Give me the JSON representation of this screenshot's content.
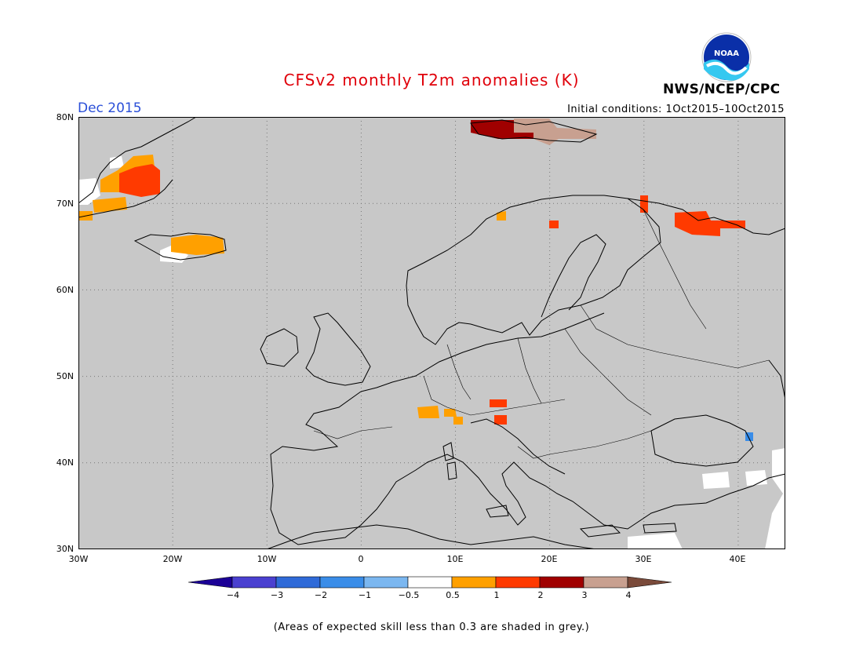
{
  "header": {
    "title": "CFSv2 monthly T2m anomalies (K)",
    "month": "Dec 2015",
    "initial_conditions": "Initial conditions: 1Oct2015–10Oct2015",
    "agency": "NWS/NCEP/CPC",
    "logo_text": "NOAA"
  },
  "map": {
    "lon_range": [
      -30,
      45
    ],
    "lat_range": [
      30,
      80
    ],
    "lat_labels": [
      "80N",
      "70N",
      "60N",
      "50N",
      "40N",
      "30N"
    ],
    "lon_labels": [
      "30W",
      "20W",
      "10W",
      "0",
      "10E",
      "20E",
      "30E",
      "40E"
    ],
    "background_color": "#c8c8c8",
    "gridlines": true
  },
  "colorbar": {
    "labels": [
      "−4",
      "−3",
      "−2",
      "−1",
      "−0.5",
      "0.5",
      "1",
      "2",
      "3",
      "4"
    ],
    "colors": [
      "#1b0096",
      "#4a40d0",
      "#2f6ad8",
      "#3a8de8",
      "#7bb7f0",
      "#ffffff",
      "#ffa000",
      "#ff3a00",
      "#a00000",
      "#c8a090",
      "#7a4a3a"
    ]
  },
  "footnote": "(Areas of expected skill less than 0.3 are shaded in grey.)"
}
